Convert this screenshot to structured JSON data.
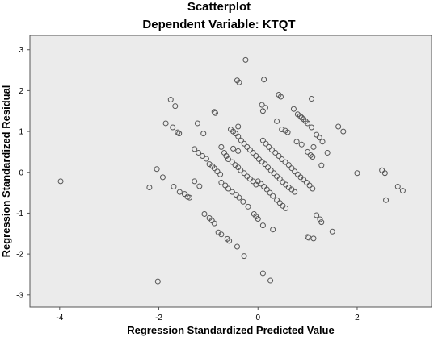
{
  "chart_data": {
    "type": "scatter",
    "title": "Scatterplot",
    "subtitle": "Dependent Variable: KTQT",
    "xlabel": "Regression Standardized Predicted Value",
    "ylabel": "Regression Standardized Residual",
    "xlim": [
      -4.6,
      3.5
    ],
    "ylim": [
      -3.3,
      3.35
    ],
    "xticks": [
      "-4",
      "-2",
      "0",
      "2"
    ],
    "xtick_values": [
      -4,
      -2,
      0,
      2
    ],
    "yticks": [
      "3",
      "2",
      "1",
      "0",
      "-1",
      "-2",
      "-3"
    ],
    "ytick_values": [
      3,
      2,
      1,
      0,
      -1,
      -2,
      -3
    ],
    "grid": false,
    "colors": {
      "plot_background": "#ebebeb",
      "marker_edge": "#555555",
      "axis": "#555555"
    },
    "series": [
      {
        "points": [
          [
            -3.98,
            -0.22
          ],
          [
            -2.19,
            -0.37
          ],
          [
            -1.92,
            -0.12
          ],
          [
            -2.04,
            0.08
          ],
          [
            -2.02,
            -2.67
          ],
          [
            -1.86,
            1.2
          ],
          [
            -1.72,
            1.1
          ],
          [
            -1.62,
            0.98
          ],
          [
            -1.59,
            0.95
          ],
          [
            -1.67,
            1.62
          ],
          [
            -1.76,
            1.78
          ],
          [
            -1.7,
            -0.35
          ],
          [
            -1.58,
            -0.48
          ],
          [
            -1.48,
            -0.53
          ],
          [
            -1.42,
            -0.6
          ],
          [
            -1.38,
            -0.62
          ],
          [
            -1.22,
            1.2
          ],
          [
            -1.28,
            0.57
          ],
          [
            -1.2,
            0.48
          ],
          [
            -1.12,
            0.4
          ],
          [
            -1.04,
            0.33
          ],
          [
            -0.98,
            0.2
          ],
          [
            -0.92,
            0.15
          ],
          [
            -0.88,
            0.1
          ],
          [
            -0.82,
            0.02
          ],
          [
            -0.76,
            -0.05
          ],
          [
            -1.1,
            0.95
          ],
          [
            -1.28,
            -0.22
          ],
          [
            -1.18,
            -0.34
          ],
          [
            -0.88,
            1.48
          ],
          [
            -0.86,
            1.45
          ],
          [
            -1.08,
            -1.02
          ],
          [
            -0.98,
            -1.12
          ],
          [
            -0.93,
            -1.18
          ],
          [
            -0.88,
            -1.25
          ],
          [
            -0.8,
            -1.47
          ],
          [
            -0.74,
            -1.52
          ],
          [
            -0.62,
            -1.63
          ],
          [
            -0.58,
            -1.68
          ],
          [
            -0.42,
            -1.82
          ],
          [
            -0.28,
            -2.05
          ],
          [
            -0.74,
            0.62
          ],
          [
            -0.68,
            0.48
          ],
          [
            -0.64,
            0.4
          ],
          [
            -0.6,
            0.32
          ],
          [
            -0.52,
            0.25
          ],
          [
            -0.46,
            0.18
          ],
          [
            -0.4,
            0.12
          ],
          [
            -0.35,
            0.05
          ],
          [
            -0.28,
            -0.02
          ],
          [
            -0.22,
            -0.1
          ],
          [
            -0.16,
            -0.16
          ],
          [
            -0.1,
            -0.22
          ],
          [
            -0.04,
            -0.3
          ],
          [
            -0.74,
            -0.25
          ],
          [
            -0.66,
            -0.32
          ],
          [
            -0.6,
            -0.4
          ],
          [
            -0.52,
            -0.48
          ],
          [
            -0.44,
            -0.55
          ],
          [
            -0.38,
            -0.62
          ],
          [
            -0.3,
            -0.72
          ],
          [
            -0.2,
            -0.84
          ],
          [
            -0.08,
            -1.02
          ],
          [
            -0.04,
            -1.08
          ],
          [
            0.0,
            -1.14
          ],
          [
            0.1,
            -1.3
          ],
          [
            -0.55,
            1.05
          ],
          [
            -0.5,
            1.0
          ],
          [
            -0.45,
            0.95
          ],
          [
            -0.4,
            0.88
          ],
          [
            -0.34,
            0.78
          ],
          [
            -0.28,
            0.7
          ],
          [
            -0.22,
            0.62
          ],
          [
            -0.16,
            0.55
          ],
          [
            -0.1,
            0.48
          ],
          [
            -0.04,
            0.4
          ],
          [
            0.02,
            0.32
          ],
          [
            0.08,
            0.26
          ],
          [
            0.14,
            0.2
          ],
          [
            0.2,
            0.12
          ],
          [
            0.26,
            0.05
          ],
          [
            0.32,
            -0.02
          ],
          [
            0.38,
            -0.1
          ],
          [
            0.44,
            -0.16
          ],
          [
            0.5,
            -0.24
          ],
          [
            0.56,
            -0.3
          ],
          [
            0.62,
            -0.37
          ],
          [
            0.68,
            -0.42
          ],
          [
            0.74,
            -0.48
          ],
          [
            -0.5,
            0.58
          ],
          [
            -0.4,
            0.52
          ],
          [
            -0.42,
            2.25
          ],
          [
            -0.38,
            2.2
          ],
          [
            -0.25,
            2.75
          ],
          [
            -0.4,
            1.12
          ],
          [
            0.12,
            2.27
          ],
          [
            0.08,
            1.65
          ],
          [
            0.15,
            1.58
          ],
          [
            0.1,
            1.5
          ],
          [
            0.1,
            0.78
          ],
          [
            0.16,
            0.7
          ],
          [
            0.22,
            0.62
          ],
          [
            0.28,
            0.55
          ],
          [
            0.35,
            0.48
          ],
          [
            0.42,
            0.4
          ],
          [
            0.48,
            0.32
          ],
          [
            0.55,
            0.25
          ],
          [
            0.62,
            0.18
          ],
          [
            0.68,
            0.1
          ],
          [
            0.74,
            0.02
          ],
          [
            0.8,
            -0.05
          ],
          [
            0.86,
            -0.12
          ],
          [
            0.92,
            -0.18
          ],
          [
            0.98,
            -0.25
          ],
          [
            1.04,
            -0.32
          ],
          [
            1.1,
            -0.4
          ],
          [
            0.0,
            -0.22
          ],
          [
            0.06,
            -0.28
          ],
          [
            0.12,
            -0.35
          ],
          [
            0.18,
            -0.42
          ],
          [
            0.24,
            -0.5
          ],
          [
            0.3,
            -0.58
          ],
          [
            0.38,
            -0.68
          ],
          [
            0.44,
            -0.75
          ],
          [
            0.5,
            -0.82
          ],
          [
            0.56,
            -0.88
          ],
          [
            0.42,
            1.9
          ],
          [
            0.46,
            1.85
          ],
          [
            0.38,
            1.25
          ],
          [
            0.48,
            1.05
          ],
          [
            0.55,
            1.02
          ],
          [
            0.6,
            0.98
          ],
          [
            0.72,
            1.55
          ],
          [
            0.8,
            1.42
          ],
          [
            0.85,
            1.38
          ],
          [
            0.88,
            1.34
          ],
          [
            0.92,
            1.3
          ],
          [
            0.96,
            1.25
          ],
          [
            1.0,
            1.2
          ],
          [
            1.08,
            1.1
          ],
          [
            0.78,
            0.75
          ],
          [
            0.88,
            0.68
          ],
          [
            1.08,
            1.8
          ],
          [
            1.12,
            0.62
          ],
          [
            1.18,
            0.92
          ],
          [
            1.24,
            0.85
          ],
          [
            1.3,
            0.75
          ],
          [
            1.0,
            0.5
          ],
          [
            1.06,
            0.42
          ],
          [
            1.1,
            0.38
          ],
          [
            1.4,
            0.48
          ],
          [
            1.28,
            0.17
          ],
          [
            1.62,
            1.12
          ],
          [
            1.72,
            1.0
          ],
          [
            1.18,
            -1.05
          ],
          [
            1.25,
            -1.15
          ],
          [
            1.28,
            -1.22
          ],
          [
            1.0,
            -1.58
          ],
          [
            1.02,
            -1.6
          ],
          [
            1.12,
            -1.62
          ],
          [
            1.5,
            -1.45
          ],
          [
            0.3,
            -1.4
          ],
          [
            0.1,
            -2.47
          ],
          [
            0.25,
            -2.65
          ],
          [
            2.0,
            -0.02
          ],
          [
            2.5,
            0.05
          ],
          [
            2.56,
            -0.02
          ],
          [
            2.58,
            -0.68
          ],
          [
            2.82,
            -0.35
          ],
          [
            2.92,
            -0.45
          ]
        ]
      }
    ]
  }
}
